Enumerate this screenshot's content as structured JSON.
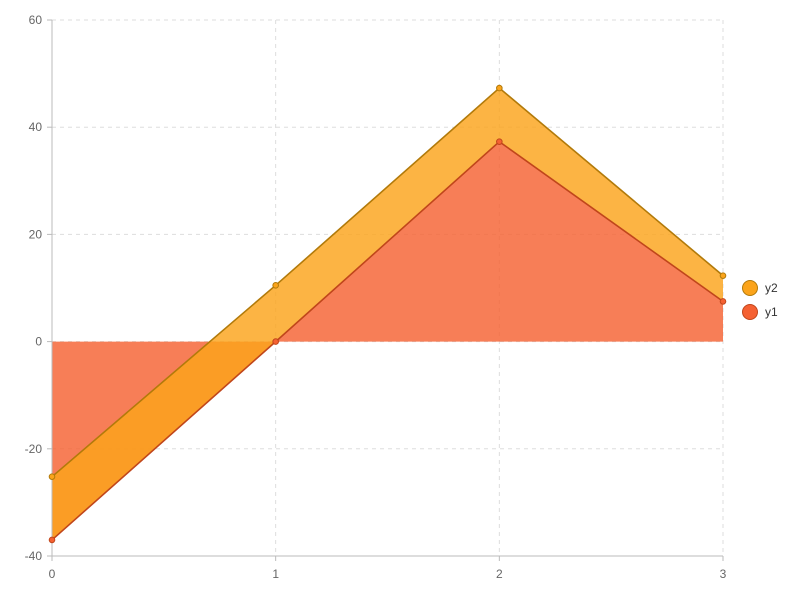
{
  "chart_data": {
    "type": "area",
    "x": [
      0,
      1,
      2,
      3
    ],
    "xlim": [
      0,
      3
    ],
    "ylim": [
      -40,
      60
    ],
    "x_ticks": [
      "0",
      "1",
      "2",
      "3"
    ],
    "y_ticks": [
      "-40",
      "-20",
      "0",
      "20",
      "40",
      "60"
    ],
    "grid": true,
    "legend_position": "right",
    "stacked": true,
    "series": [
      {
        "name": "y1",
        "values": [
          -37,
          0,
          37.3,
          7.5
        ],
        "color": "#f56132",
        "line_color": "#c0461b"
      },
      {
        "name": "y2",
        "values": [
          11.8,
          10.5,
          10.0,
          4.8
        ],
        "color": "#fba41b",
        "line_color": "#b27a0a"
      }
    ],
    "legend_order": [
      "y2",
      "y1"
    ]
  }
}
